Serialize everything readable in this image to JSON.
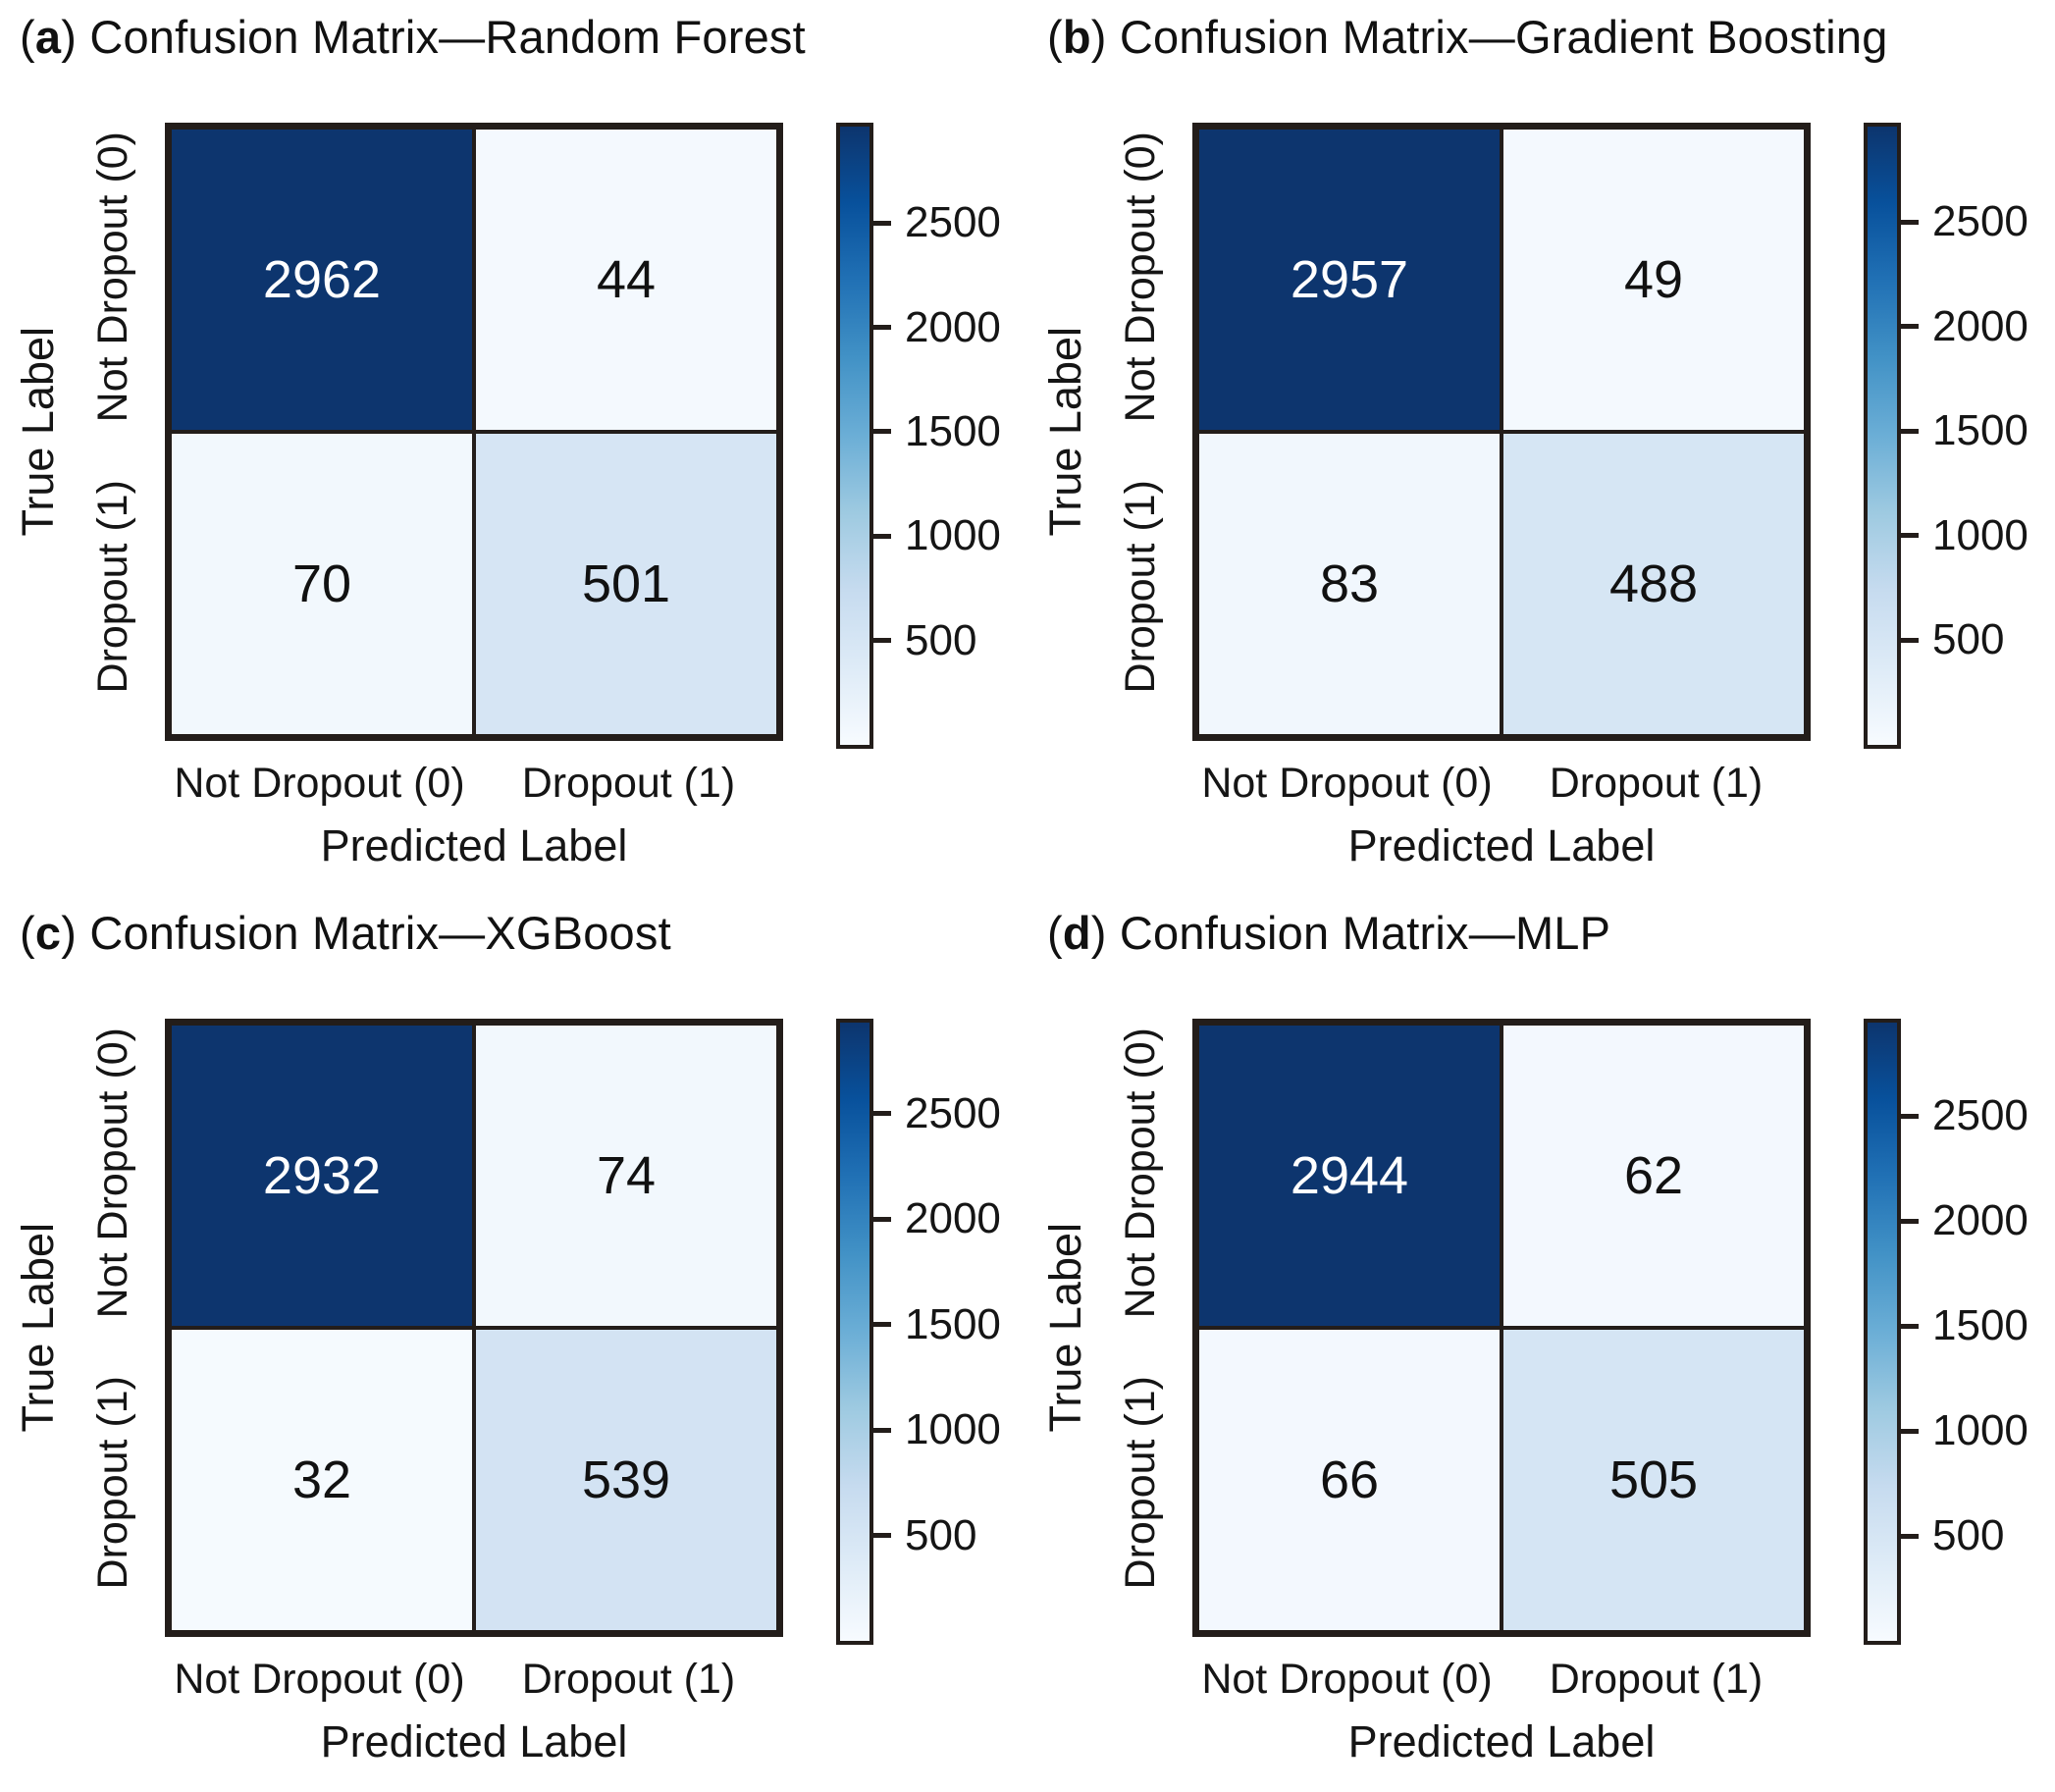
{
  "figure": {
    "background": "#ffffff",
    "panel_prefix_open": "(",
    "panel_prefix_close": ")",
    "colors": {
      "border": "#231d1a",
      "text": "#151515",
      "cell_text_dark": "#111111",
      "cell_text_light": "#ffffff",
      "colormap_stops": [
        {
          "t": 0.0,
          "color": "#f7fbff"
        },
        {
          "t": 0.125,
          "color": "#deebf7"
        },
        {
          "t": 0.25,
          "color": "#c6dbef"
        },
        {
          "t": 0.375,
          "color": "#9ecae1"
        },
        {
          "t": 0.5,
          "color": "#6baed6"
        },
        {
          "t": 0.625,
          "color": "#4292c6"
        },
        {
          "t": 0.75,
          "color": "#2171b5"
        },
        {
          "t": 0.875,
          "color": "#08519c"
        },
        {
          "t": 1.0,
          "color": "#0d356e"
        }
      ]
    }
  },
  "chart_data": [
    {
      "type": "heatmap",
      "panel_letter": "a",
      "title": "Confusion Matrix—Random Forest",
      "xlabel": "Predicted Label",
      "ylabel": "True Label",
      "x_categories": [
        "Not Dropout (0)",
        "Dropout (1)"
      ],
      "y_categories": [
        "Not Dropout (0)",
        "Dropout (1)"
      ],
      "values": [
        [
          2962,
          44
        ],
        [
          70,
          501
        ]
      ],
      "vmin": 0,
      "colorbar_ticks": [
        500,
        1000,
        1500,
        2000,
        2500
      ],
      "colormap": "Blues",
      "legend_position": "right-colorbar",
      "grid": false
    },
    {
      "type": "heatmap",
      "panel_letter": "b",
      "title": "Confusion Matrix—Gradient Boosting",
      "xlabel": "Predicted Label",
      "ylabel": "True Label",
      "x_categories": [
        "Not Dropout (0)",
        "Dropout (1)"
      ],
      "y_categories": [
        "Not Dropout (0)",
        "Dropout (1)"
      ],
      "values": [
        [
          2957,
          49
        ],
        [
          83,
          488
        ]
      ],
      "vmin": 0,
      "colorbar_ticks": [
        500,
        1000,
        1500,
        2000,
        2500
      ],
      "colormap": "Blues",
      "legend_position": "right-colorbar",
      "grid": false
    },
    {
      "type": "heatmap",
      "panel_letter": "c",
      "title": "Confusion Matrix—XGBoost",
      "xlabel": "Predicted Label",
      "ylabel": "True Label",
      "x_categories": [
        "Not Dropout (0)",
        "Dropout (1)"
      ],
      "y_categories": [
        "Not Dropout (0)",
        "Dropout (1)"
      ],
      "values": [
        [
          2932,
          74
        ],
        [
          32,
          539
        ]
      ],
      "vmin": 0,
      "colorbar_ticks": [
        500,
        1000,
        1500,
        2000,
        2500
      ],
      "colormap": "Blues",
      "legend_position": "right-colorbar",
      "grid": false
    },
    {
      "type": "heatmap",
      "panel_letter": "d",
      "title": "Confusion Matrix—MLP",
      "xlabel": "Predicted Label",
      "ylabel": "True Label",
      "x_categories": [
        "Not Dropout (0)",
        "Dropout (1)"
      ],
      "y_categories": [
        "Not Dropout (0)",
        "Dropout (1)"
      ],
      "values": [
        [
          2944,
          62
        ],
        [
          66,
          505
        ]
      ],
      "vmin": 0,
      "colorbar_ticks": [
        500,
        1000,
        1500,
        2000,
        2500
      ],
      "colormap": "Blues",
      "legend_position": "right-colorbar",
      "grid": false
    }
  ]
}
